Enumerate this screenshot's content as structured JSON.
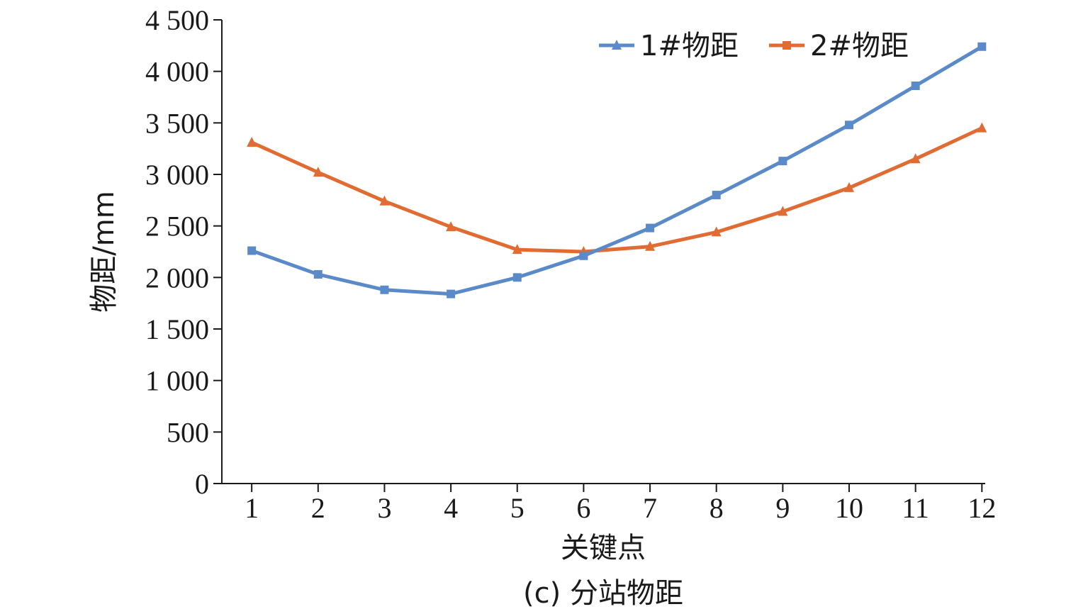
{
  "chart_data": {
    "type": "line",
    "title": "",
    "caption": "(c) 分站物距",
    "xlabel": "关键点",
    "ylabel": "物距/mm",
    "x": [
      1,
      2,
      3,
      4,
      5,
      6,
      7,
      8,
      9,
      10,
      11,
      12
    ],
    "xlim": [
      0.55,
      12.05
    ],
    "xticks": [
      1,
      2,
      3,
      4,
      5,
      6,
      7,
      8,
      9,
      10,
      11,
      12
    ],
    "ylim": [
      0,
      4500
    ],
    "yticks": [
      0,
      500,
      1000,
      1500,
      2000,
      2500,
      3000,
      3500,
      4000,
      4500
    ],
    "ytick_labels": [
      "0",
      "500",
      "1 000",
      "1 500",
      "2 000",
      "2 500",
      "3 000",
      "3 500",
      "4 000",
      "4 500"
    ],
    "grid": false,
    "legend_position": "top-right",
    "series": [
      {
        "name": "1#物距",
        "color": "#5b8ac9",
        "marker": "square",
        "legend_marker": "triangle",
        "values": [
          2260,
          2030,
          1880,
          1840,
          2000,
          2210,
          2480,
          2800,
          3130,
          3480,
          3860,
          4240
        ]
      },
      {
        "name": "2#物距",
        "color": "#e06c33",
        "marker": "triangle",
        "legend_marker": "square",
        "values": [
          3310,
          3020,
          2740,
          2490,
          2270,
          2250,
          2300,
          2440,
          2640,
          2870,
          3150,
          3450
        ]
      }
    ]
  }
}
